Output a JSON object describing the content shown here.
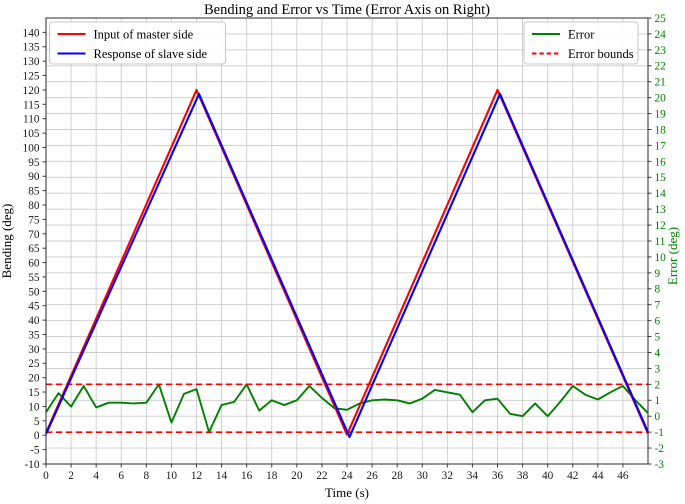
{
  "title": "Bending and Error vs Time (Error Axis on Right)",
  "x_axis": {
    "label": "Time (s)",
    "min": 0,
    "max": 48,
    "ticks": [
      0,
      2,
      4,
      6,
      8,
      10,
      12,
      14,
      16,
      18,
      20,
      22,
      24,
      26,
      28,
      30,
      32,
      34,
      36,
      38,
      40,
      42,
      44,
      46
    ]
  },
  "left_axis": {
    "label": "Bending (deg)",
    "min": -10,
    "max": 145,
    "color": "#1a1a1a",
    "ticks": [
      -10,
      -5,
      0,
      5,
      10,
      15,
      20,
      25,
      30,
      35,
      40,
      45,
      50,
      55,
      60,
      65,
      70,
      75,
      80,
      85,
      90,
      95,
      100,
      105,
      110,
      115,
      120,
      125,
      130,
      135,
      140
    ]
  },
  "right_axis": {
    "label": "Error (deg)",
    "min": -3,
    "max": 25,
    "color": "#008000",
    "ticks": [
      -3,
      -2,
      -1,
      0,
      1,
      2,
      3,
      4,
      5,
      6,
      7,
      8,
      9,
      10,
      11,
      12,
      13,
      14,
      15,
      16,
      17,
      18,
      19,
      20,
      21,
      22,
      23,
      24,
      25
    ]
  },
  "legend_left": {
    "items": [
      {
        "label": "Input of master side",
        "color": "#ff0000",
        "style": "solid"
      },
      {
        "label": "Response of slave side",
        "color": "#0000ff",
        "style": "solid"
      }
    ]
  },
  "legend_right": {
    "items": [
      {
        "label": "Error",
        "color": "#008000",
        "style": "solid"
      },
      {
        "label": "Error bounds",
        "color": "#ff0000",
        "style": "dashed"
      }
    ]
  },
  "chart_data": {
    "type": "line",
    "title": "Bending and Error vs Time (Error Axis on Right)",
    "xlabel": "Time (s)",
    "ylabel_left": "Bending (deg)",
    "ylabel_right": "Error (deg)",
    "xlim": [
      0,
      48
    ],
    "ylim_left": [
      -10,
      145
    ],
    "ylim_right": [
      -3,
      25
    ],
    "grid": true,
    "legend_positions": [
      "upper left",
      "upper right"
    ],
    "series": [
      {
        "name": "Input of master side",
        "axis": "left",
        "color": "#ff0000",
        "style": "solid",
        "width": 2.1,
        "points": [
          [
            0,
            0.8
          ],
          [
            12,
            120
          ],
          [
            24,
            0.2
          ],
          [
            36,
            120
          ],
          [
            48,
            0.6
          ]
        ]
      },
      {
        "name": "Response of slave side",
        "axis": "left",
        "color": "#0000ff",
        "style": "solid",
        "width": 2.1,
        "points": [
          [
            0,
            0.4
          ],
          [
            12.2,
            118.6
          ],
          [
            24.2,
            -0.6
          ],
          [
            36.2,
            118.6
          ],
          [
            48,
            1.1
          ]
        ]
      },
      {
        "name": "Error",
        "axis": "right",
        "color": "#008000",
        "style": "solid",
        "width": 1.9,
        "x_start": 0,
        "x_step": 1,
        "values": [
          0.25,
          1.45,
          0.6,
          1.9,
          0.55,
          0.85,
          0.85,
          0.8,
          0.85,
          2.0,
          -0.4,
          1.4,
          1.7,
          -1.0,
          0.7,
          0.9,
          2.0,
          0.35,
          1.0,
          0.7,
          1.0,
          1.9,
          1.15,
          0.5,
          0.4,
          0.8,
          1.0,
          1.05,
          1.0,
          0.8,
          1.1,
          1.65,
          1.5,
          1.35,
          0.25,
          1.0,
          1.1,
          0.15,
          0.0,
          0.8,
          0.0,
          0.9,
          1.9,
          1.35,
          1.05,
          1.5,
          1.9,
          1.0,
          0.2
        ]
      },
      {
        "name": "Error bounds",
        "axis": "right",
        "color": "#ff0000",
        "style": "dashed",
        "width": 1.6,
        "bounds": [
          2,
          -1
        ]
      }
    ]
  },
  "colors": {
    "grid": "#cccccc",
    "spine": "#3c3c3c",
    "tick": "#3c3c3c",
    "background": "#ffffff"
  }
}
